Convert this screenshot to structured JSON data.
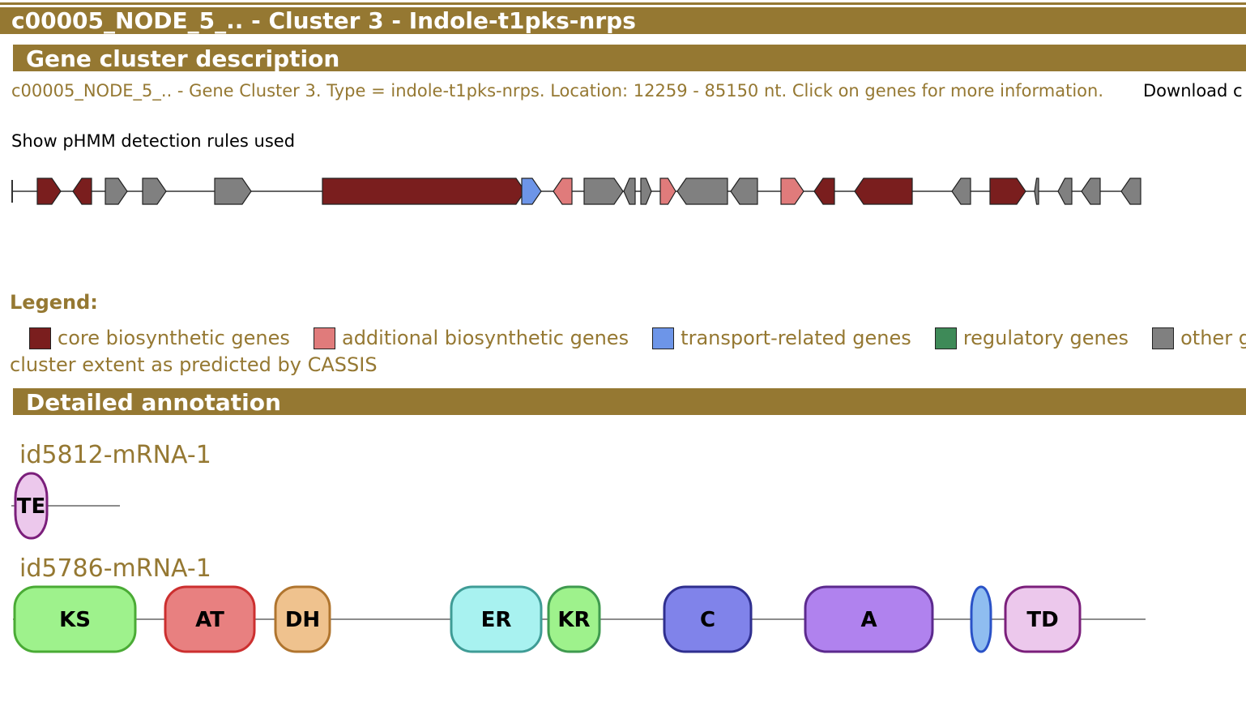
{
  "title": "c00005_NODE_5_.. - Cluster 3 - Indole-t1pks-nrps",
  "sections": {
    "description_header": "Gene cluster description",
    "annotation_header": "Detailed annotation"
  },
  "description": {
    "text": "c00005_NODE_5_.. - Gene Cluster 3. Type = indole-t1pks-nrps. Location: 12259 - 85150 nt. Click on genes for more information.",
    "download_label": "Download c",
    "phmm_link": "Show pHMM detection rules used"
  },
  "colors": {
    "header_bg": "#957832",
    "core": "#7a1e1e",
    "additional": "#e07b7b",
    "transport": "#6d95e8",
    "regulatory": "#3e8a58",
    "other": "#808080"
  },
  "cluster_genes": [
    {
      "type": "core",
      "strand": "+"
    },
    {
      "type": "core",
      "strand": "-"
    },
    {
      "type": "other",
      "strand": "+"
    },
    {
      "type": "other",
      "strand": "+"
    },
    {
      "type": "other",
      "strand": "+"
    },
    {
      "type": "core",
      "strand": "+"
    },
    {
      "type": "transport",
      "strand": "+"
    },
    {
      "type": "additional",
      "strand": "-"
    },
    {
      "type": "other",
      "strand": "+"
    },
    {
      "type": "other",
      "strand": "-"
    },
    {
      "type": "other",
      "strand": "+"
    },
    {
      "type": "additional",
      "strand": "+"
    },
    {
      "type": "other",
      "strand": "-"
    },
    {
      "type": "other",
      "strand": "-"
    },
    {
      "type": "additional",
      "strand": "+"
    },
    {
      "type": "core",
      "strand": "-"
    },
    {
      "type": "core",
      "strand": "-"
    },
    {
      "type": "other",
      "strand": "-"
    },
    {
      "type": "core",
      "strand": "+"
    },
    {
      "type": "other",
      "strand": "-"
    },
    {
      "type": "other",
      "strand": "-"
    },
    {
      "type": "other",
      "strand": "-"
    },
    {
      "type": "other",
      "strand": "-"
    }
  ],
  "legend": {
    "title": "Legend:",
    "items": [
      {
        "label": "core biosynthetic genes",
        "color": "#7a1e1e"
      },
      {
        "label": "additional biosynthetic genes",
        "color": "#e07b7b"
      },
      {
        "label": "transport-related genes",
        "color": "#6d95e8"
      },
      {
        "label": "regulatory genes",
        "color": "#3e8a58"
      },
      {
        "label": "other genes",
        "color": "#808080"
      }
    ],
    "cassis": "cluster extent as predicted by CASSIS"
  },
  "genes": [
    {
      "id": "id5812-mRNA-1",
      "domains": [
        {
          "label": "TE",
          "fill": "#ecc8ec",
          "stroke": "#7b1f7b"
        }
      ]
    },
    {
      "id": "id5786-mRNA-1",
      "domains": [
        {
          "label": "KS",
          "fill": "#9ef28c",
          "stroke": "#4aab35"
        },
        {
          "label": "AT",
          "fill": "#e88080",
          "stroke": "#cc2f2f"
        },
        {
          "label": "DH",
          "fill": "#efc28e",
          "stroke": "#b0752f"
        },
        {
          "label": "ER",
          "fill": "#a8f2f0",
          "stroke": "#3f9c96"
        },
        {
          "label": "KR",
          "fill": "#9ef28c",
          "stroke": "#3f9a4f"
        },
        {
          "label": "C",
          "fill": "#8083ea",
          "stroke": "#2f2f8f"
        },
        {
          "label": "A",
          "fill": "#b082ee",
          "stroke": "#5c2a8e"
        },
        {
          "label": "",
          "fill": "#8fbdf0",
          "stroke": "#2a52c7"
        },
        {
          "label": "TD",
          "fill": "#ecc8ec",
          "stroke": "#7b1f7b"
        }
      ]
    }
  ]
}
